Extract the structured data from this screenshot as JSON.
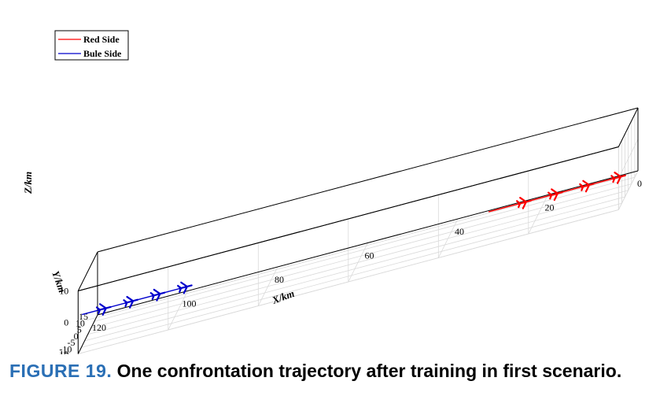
{
  "chart_data": {
    "type": "line3d",
    "title": "",
    "axes": {
      "x": {
        "label": "X/km",
        "ticks": [
          0,
          20,
          40,
          60,
          80,
          100,
          120
        ],
        "range": [
          0,
          120
        ]
      },
      "y": {
        "label": "Y/km",
        "ticks": [
          -15,
          -10,
          -5,
          0,
          5,
          10,
          15
        ],
        "range": [
          -15,
          15
        ]
      },
      "z": {
        "label": "Z/km",
        "ticks": [
          -10,
          0,
          10
        ],
        "range": [
          -10,
          10
        ]
      }
    },
    "grid": true,
    "legend": {
      "placement": "top-left",
      "entries": [
        "Red Side",
        "Bule Side"
      ]
    },
    "series": [
      {
        "name": "Red Side",
        "color": "#ff0000",
        "marker": "aircraft",
        "points": [
          [
            29,
            -14,
            0
          ],
          [
            21,
            -14,
            0
          ],
          [
            14,
            -14,
            0
          ],
          [
            7,
            -14,
            0
          ],
          [
            0,
            -14,
            0
          ]
        ],
        "markers_at": [
          1,
          2,
          3,
          4
        ]
      },
      {
        "name": "Bule Side",
        "color": "#0000cc",
        "marker": "aircraft",
        "points": [
          [
            120,
            -9,
            0
          ],
          [
            115,
            -9,
            0
          ],
          [
            109,
            -9,
            0
          ],
          [
            103,
            -9,
            0
          ],
          [
            97,
            -9,
            0
          ]
        ],
        "markers_at": [
          1,
          2,
          3,
          4
        ]
      }
    ]
  },
  "caption": {
    "label": "FIGURE 19.",
    "text": "One confrontation trajectory after training in first scenario."
  }
}
